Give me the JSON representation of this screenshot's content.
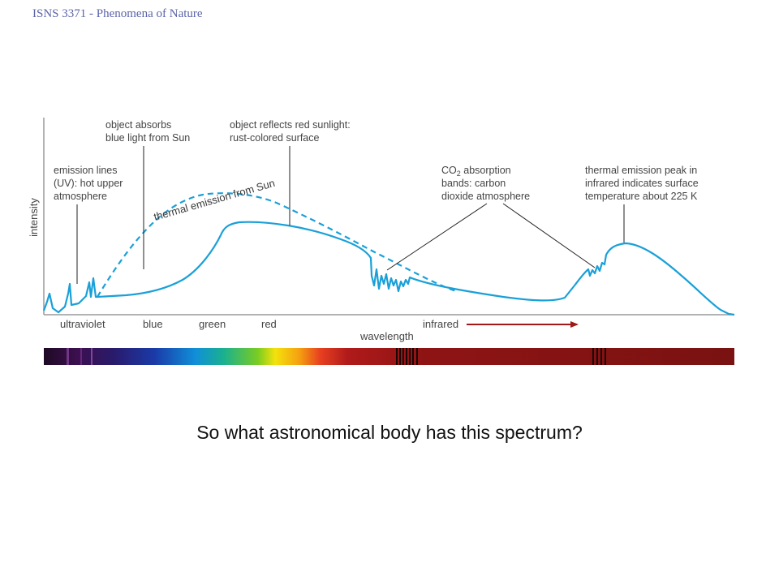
{
  "header": {
    "course": "ISNS 3371 - Phenomena of Nature"
  },
  "question": "So what astronomical body has this spectrum?",
  "chart_data": {
    "type": "line",
    "ylabel": "intensity",
    "xlabel": "wavelength",
    "x_regions": [
      "ultraviolet",
      "blue",
      "green",
      "red",
      "infrared"
    ],
    "series": [
      {
        "style": "solid"
      },
      {
        "name": "thermal emission from Sun",
        "style": "dashed"
      }
    ],
    "annotations": [
      {
        "id": "uv",
        "lines": [
          "emission lines",
          "(UV): hot upper",
          "atmosphere"
        ]
      },
      {
        "id": "blue",
        "lines": [
          "object absorbs",
          "blue light from Sun"
        ]
      },
      {
        "id": "red",
        "lines": [
          "object reflects red sunlight:",
          "rust-colored surface"
        ]
      },
      {
        "id": "co2",
        "lines": [
          "absorption",
          "bands: carbon",
          "dioxide atmosphere"
        ],
        "prefix": "CO",
        "subscript": "2"
      },
      {
        "id": "thermal",
        "lines": [
          "thermal emission peak in",
          "infrared indicates surface",
          "temperature about 225 K"
        ]
      }
    ],
    "colors": {
      "curve": "#1aa0d8",
      "arrow": "#a01818",
      "axis": "#999999"
    }
  }
}
